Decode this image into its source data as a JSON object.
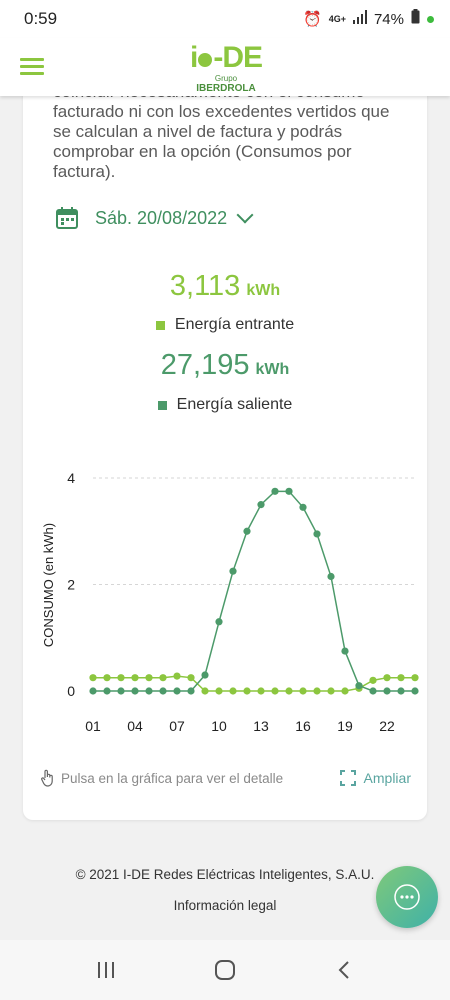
{
  "status": {
    "time": "0:59",
    "network": "4G+",
    "battery": "74%"
  },
  "header": {
    "logo_main": "DE",
    "logo_group": "Grupo",
    "logo_company": "IBERDROLA"
  },
  "intro_text": "coincidir necesariamente con el consumo facturado ni con los excedentes vertidos que se calculan a nivel de factura y podrás comprobar en la opción (Consumos por factura).",
  "date": {
    "label": "Sáb. 20/08/2022"
  },
  "incoming": {
    "value": "3,113",
    "unit": "kWh",
    "label": "Energía entrante",
    "color": "#8cc63f"
  },
  "outgoing": {
    "value": "27,195",
    "unit": "kWh",
    "label": "Energía saliente",
    "color": "#4c9a6a"
  },
  "chart_data": {
    "type": "line",
    "ylabel": "CONSUMO (en kWh)",
    "ylim": [
      0,
      4
    ],
    "yticks": [
      0,
      2,
      4
    ],
    "xticks": [
      "01",
      "04",
      "07",
      "10",
      "13",
      "16",
      "19",
      "22"
    ],
    "x": [
      1,
      2,
      3,
      4,
      5,
      6,
      7,
      8,
      9,
      10,
      11,
      12,
      13,
      14,
      15,
      16,
      17,
      18,
      19,
      20,
      21,
      22,
      23,
      24
    ],
    "series": [
      {
        "name": "Energía entrante",
        "color": "#8cc63f",
        "values": [
          0.25,
          0.25,
          0.25,
          0.25,
          0.25,
          0.25,
          0.28,
          0.25,
          0,
          0,
          0,
          0,
          0,
          0,
          0,
          0,
          0,
          0,
          0,
          0.05,
          0.2,
          0.25,
          0.25,
          0.25
        ]
      },
      {
        "name": "Energía saliente",
        "color": "#4c9a6a",
        "values": [
          0,
          0,
          0,
          0,
          0,
          0,
          0,
          0,
          0.3,
          1.3,
          2.25,
          3.0,
          3.5,
          3.75,
          3.75,
          3.45,
          2.95,
          2.15,
          0.75,
          0.1,
          0,
          0,
          0,
          0
        ]
      }
    ]
  },
  "hint": "Pulsa en la gráfica para ver el detalle",
  "expand_label": "Ampliar",
  "footer": {
    "copyright": "© 2021 I-DE Redes Eléctricas Inteligentes, S.A.U.",
    "legal": "Información legal"
  }
}
